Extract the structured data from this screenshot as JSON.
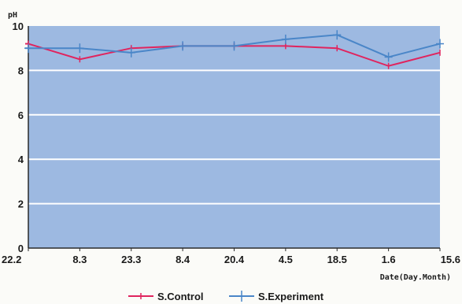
{
  "chart_data": {
    "type": "line",
    "ylabel": "pH",
    "xlabel": "Date(Day.Month)",
    "categories": [
      "22.2",
      "8.3",
      "23.3",
      "8.4",
      "20.4",
      "4.5",
      "18.5",
      "1.6",
      "15.6"
    ],
    "ylim": [
      0,
      10
    ],
    "yticks": [
      0,
      2,
      4,
      6,
      8,
      10
    ],
    "grid": true,
    "legend_position": "bottom",
    "plot_background": "#9db9e1",
    "grid_color": "#ffffff",
    "series": [
      {
        "name": "S.Control",
        "color": "#e0245e",
        "marker": "tick",
        "values": [
          9.2,
          8.5,
          9.0,
          9.1,
          9.1,
          9.1,
          9.0,
          8.2,
          8.8
        ]
      },
      {
        "name": "S.Experiment",
        "color": "#4a86c8",
        "marker": "plus",
        "values": [
          9.0,
          9.0,
          8.8,
          9.1,
          9.1,
          9.4,
          9.6,
          8.6,
          9.2
        ]
      }
    ]
  }
}
